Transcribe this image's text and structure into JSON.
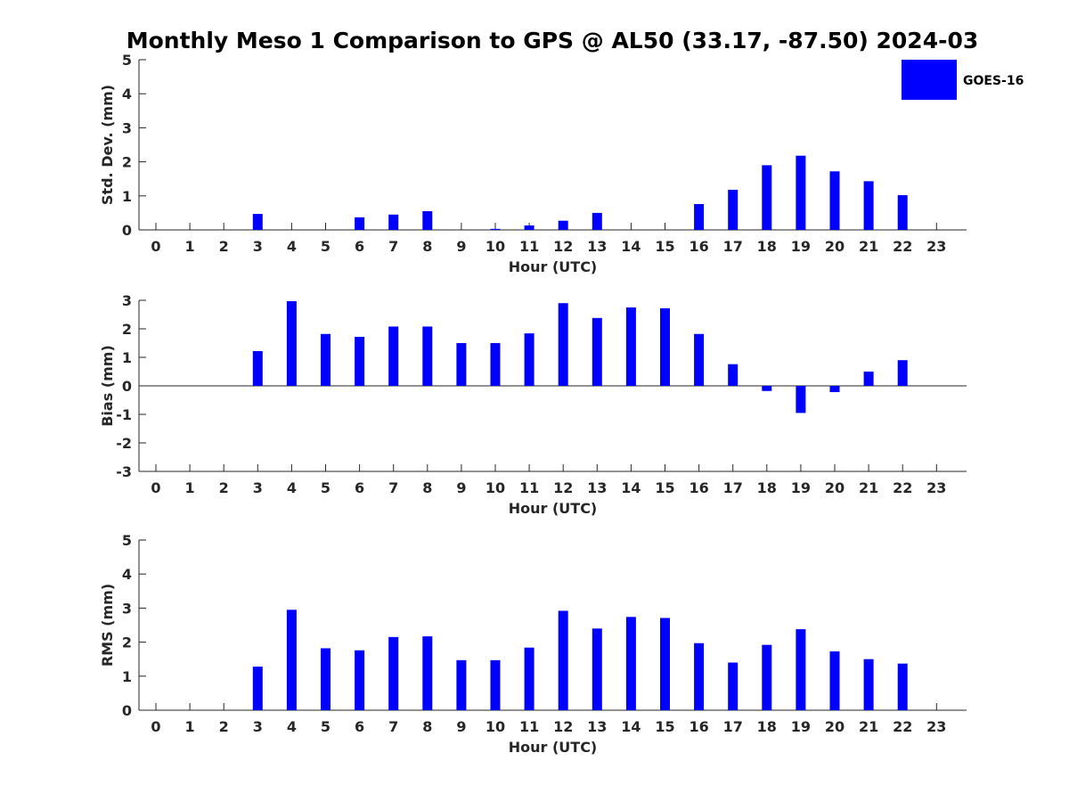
{
  "chart_data": {
    "type": "bar",
    "title": "Monthly Meso 1 Comparison to GPS @ AL50 (33.17, -87.50) 2024-03",
    "legend": {
      "position": "top-right",
      "entries": [
        "GOES-16"
      ]
    },
    "colors": {
      "bar": "#0000ff",
      "axis": "#262626"
    },
    "categories": [
      "0",
      "1",
      "2",
      "3",
      "4",
      "5",
      "6",
      "7",
      "8",
      "9",
      "10",
      "11",
      "12",
      "13",
      "14",
      "15",
      "16",
      "17",
      "18",
      "19",
      "20",
      "21",
      "22",
      "23"
    ],
    "panels": [
      {
        "id": "stddev",
        "ylabel": "Std. Dev. (mm)",
        "xlabel": "Hour (UTC)",
        "ylim": [
          0,
          5
        ],
        "yticks": [
          "0",
          "1",
          "2",
          "3",
          "4",
          "5"
        ],
        "series": [
          {
            "name": "GOES-16",
            "values": [
              null,
              null,
              null,
              0.47,
              null,
              null,
              0.37,
              0.45,
              0.55,
              null,
              0.03,
              0.13,
              0.27,
              0.5,
              null,
              null,
              0.76,
              1.18,
              1.9,
              2.18,
              1.72,
              1.43,
              1.02,
              null
            ]
          }
        ]
      },
      {
        "id": "bias",
        "ylabel": "Bias (mm)",
        "xlabel": "Hour (UTC)",
        "ylim": [
          -3,
          3
        ],
        "yticks": [
          "-3",
          "-2",
          "-1",
          "0",
          "1",
          "2",
          "3"
        ],
        "zero_line": true,
        "series": [
          {
            "name": "GOES-16",
            "values": [
              null,
              null,
              null,
              1.22,
              2.97,
              1.82,
              1.72,
              2.08,
              2.08,
              1.5,
              1.5,
              1.84,
              2.9,
              2.38,
              2.75,
              2.72,
              1.82,
              0.76,
              -0.18,
              -0.95,
              -0.22,
              0.5,
              0.9,
              null
            ]
          }
        ]
      },
      {
        "id": "rms",
        "ylabel": "RMS (mm)",
        "xlabel": "Hour (UTC)",
        "ylim": [
          0,
          5
        ],
        "yticks": [
          "0",
          "1",
          "2",
          "3",
          "4",
          "5"
        ],
        "series": [
          {
            "name": "GOES-16",
            "values": [
              null,
              null,
              null,
              1.28,
              2.95,
              1.82,
              1.76,
              2.15,
              2.17,
              1.47,
              1.47,
              1.84,
              2.92,
              2.4,
              2.74,
              2.71,
              1.97,
              1.4,
              1.92,
              2.38,
              1.73,
              1.5,
              1.37,
              null
            ]
          }
        ]
      }
    ]
  }
}
